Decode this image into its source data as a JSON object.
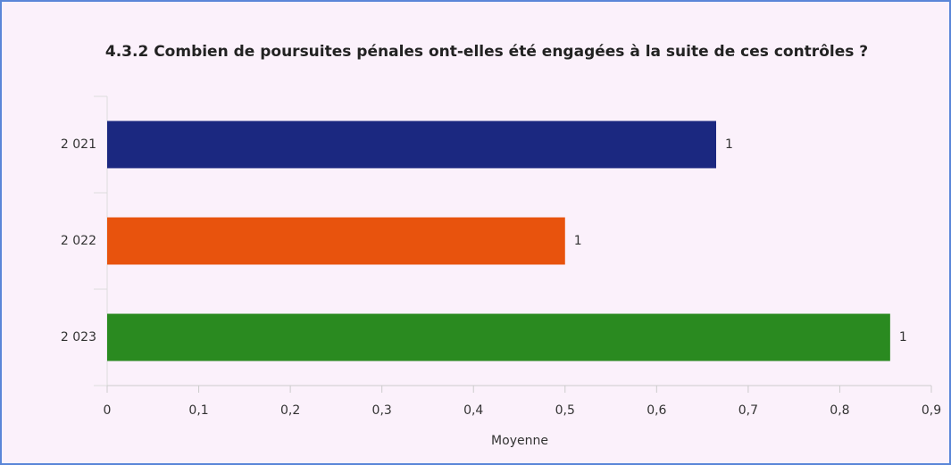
{
  "chart_data": {
    "type": "hbar",
    "title": "4.3.2 Combien de poursuites pénales ont-elles été engagées à la suite de ces contrôles ?",
    "categories": [
      "2 021",
      "2 022",
      "2 023"
    ],
    "series": [
      {
        "colors": [
          "#1b2880",
          "#e8530d",
          "#2a8a20"
        ],
        "values": [
          0.665,
          0.5,
          0.855
        ],
        "value_labels": [
          "1",
          "1",
          "1"
        ]
      }
    ],
    "xlabel": "Moyenne",
    "xlim": [
      0,
      0.9
    ],
    "xticks": [
      0,
      {
        "value": 0.1,
        "label": "0,1"
      },
      {
        "value": 0.2,
        "label": "0,2"
      },
      {
        "value": 0.3,
        "label": "0,3"
      },
      {
        "value": 0.4,
        "label": "0,4"
      },
      {
        "value": 0.5,
        "label": "0,5"
      },
      {
        "value": 0.6,
        "label": "0,6"
      },
      {
        "value": 0.7,
        "label": "0,7"
      },
      {
        "value": 0.8,
        "label": "0,8"
      },
      {
        "value": 0.9,
        "label": "0,9"
      }
    ]
  }
}
